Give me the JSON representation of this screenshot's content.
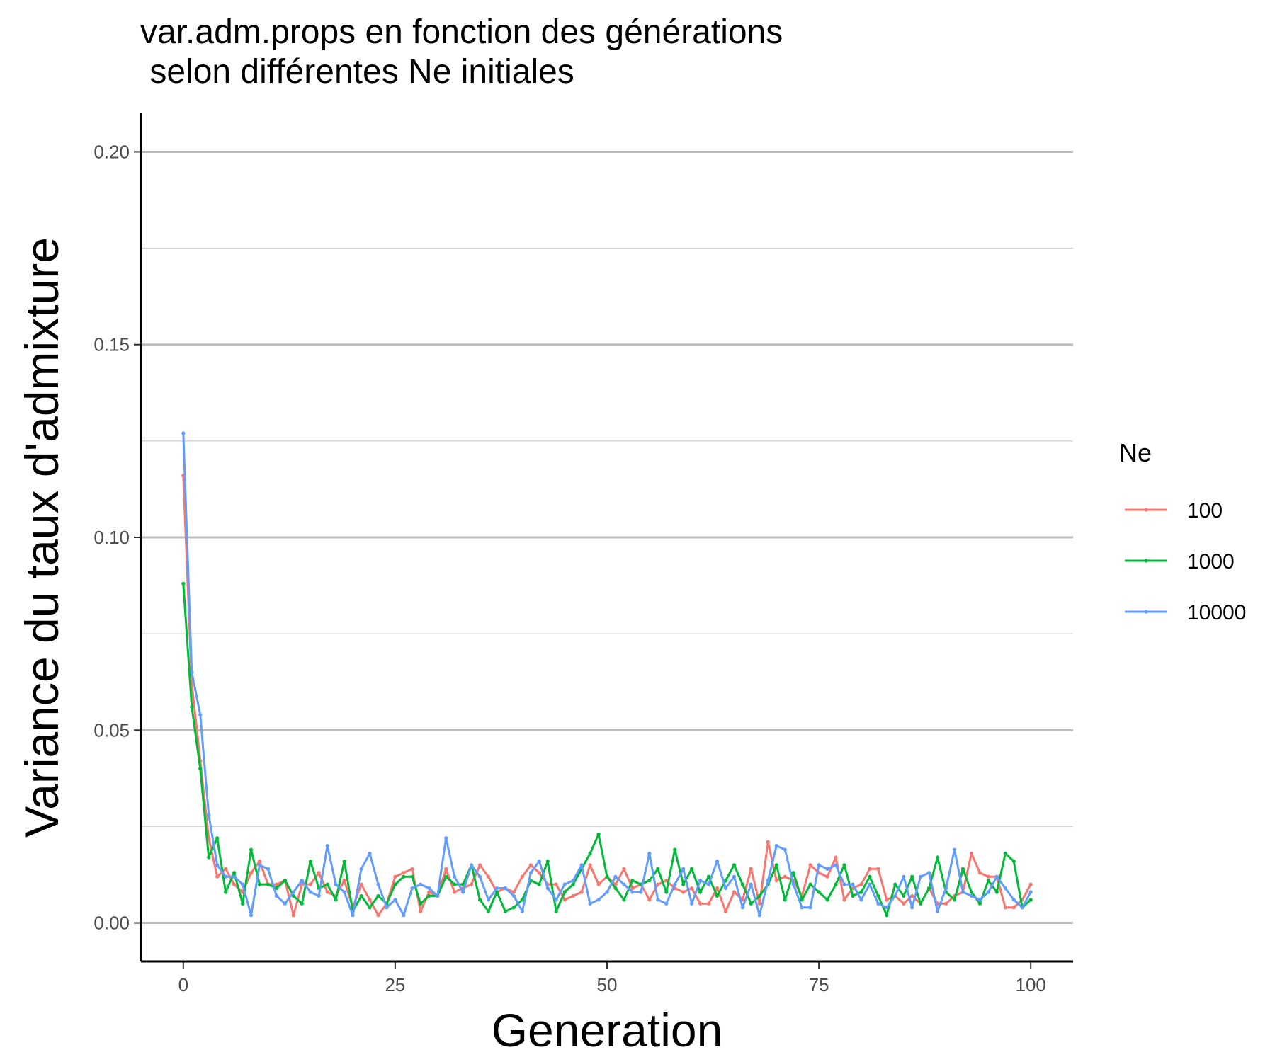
{
  "chart_data": {
    "type": "line",
    "title": "var.adm.props en fonction des générations\n selon différentes Ne initiales",
    "xlabel": "Generation",
    "ylabel": "Variance du taux d'admixture",
    "xlim": [
      -5,
      105
    ],
    "ylim": [
      -0.01,
      0.21
    ],
    "x_ticks": [
      0,
      25,
      50,
      75,
      100
    ],
    "x_tick_labels": [
      "0",
      "25",
      "50",
      "75",
      "100"
    ],
    "y_ticks": [
      0.0,
      0.05,
      0.1,
      0.15,
      0.2
    ],
    "y_tick_labels": [
      "0.00",
      "0.05",
      "0.10",
      "0.15",
      "0.20"
    ],
    "y_minor_ticks": [
      0.025,
      0.075,
      0.125,
      0.175
    ],
    "grid": "horizontal",
    "legend": {
      "title": "Ne",
      "position": "right"
    },
    "x": [
      0,
      1,
      2,
      3,
      4,
      5,
      6,
      7,
      8,
      9,
      10,
      11,
      12,
      13,
      14,
      15,
      16,
      17,
      18,
      19,
      20,
      21,
      22,
      23,
      24,
      25,
      26,
      27,
      28,
      29,
      30,
      31,
      32,
      33,
      34,
      35,
      36,
      37,
      38,
      39,
      40,
      41,
      42,
      43,
      44,
      45,
      46,
      47,
      48,
      49,
      50,
      51,
      52,
      53,
      54,
      55,
      56,
      57,
      58,
      59,
      60,
      61,
      62,
      63,
      64,
      65,
      66,
      67,
      68,
      69,
      70,
      71,
      72,
      73,
      74,
      75,
      76,
      77,
      78,
      79,
      80,
      81,
      82,
      83,
      84,
      85,
      86,
      87,
      88,
      89,
      90,
      91,
      92,
      93,
      94,
      95,
      96,
      97,
      98,
      99,
      100
    ],
    "series": [
      {
        "name": "100",
        "color": "#F8766D",
        "values": [
          0.116,
          0.062,
          0.042,
          0.022,
          0.012,
          0.014,
          0.01,
          0.008,
          0.013,
          0.016,
          0.01,
          0.01,
          0.011,
          0.002,
          0.01,
          0.01,
          0.013,
          0.008,
          0.007,
          0.011,
          0.004,
          0.01,
          0.006,
          0.002,
          0.005,
          0.012,
          0.013,
          0.014,
          0.003,
          0.008,
          0.007,
          0.014,
          0.008,
          0.009,
          0.01,
          0.015,
          0.012,
          0.008,
          0.009,
          0.008,
          0.012,
          0.015,
          0.013,
          0.01,
          0.01,
          0.006,
          0.007,
          0.008,
          0.015,
          0.01,
          0.012,
          0.01,
          0.014,
          0.009,
          0.01,
          0.006,
          0.01,
          0.011,
          0.009,
          0.008,
          0.009,
          0.005,
          0.005,
          0.009,
          0.003,
          0.008,
          0.006,
          0.014,
          0.005,
          0.021,
          0.011,
          0.012,
          0.011,
          0.007,
          0.015,
          0.013,
          0.012,
          0.017,
          0.006,
          0.009,
          0.01,
          0.014,
          0.014,
          0.006,
          0.007,
          0.005,
          0.007,
          0.005,
          0.009,
          0.005,
          0.005,
          0.007,
          0.008,
          0.018,
          0.013,
          0.012,
          0.012,
          0.004,
          0.004,
          0.006,
          0.01
        ]
      },
      {
        "name": "1000",
        "color": "#00BA38",
        "values": [
          0.088,
          0.056,
          0.04,
          0.017,
          0.022,
          0.008,
          0.013,
          0.005,
          0.019,
          0.01,
          0.01,
          0.009,
          0.011,
          0.007,
          0.005,
          0.016,
          0.009,
          0.01,
          0.006,
          0.016,
          0.003,
          0.007,
          0.004,
          0.007,
          0.005,
          0.01,
          0.012,
          0.012,
          0.005,
          0.007,
          0.007,
          0.012,
          0.01,
          0.01,
          0.015,
          0.006,
          0.003,
          0.008,
          0.003,
          0.004,
          0.006,
          0.011,
          0.01,
          0.016,
          0.003,
          0.008,
          0.01,
          0.014,
          0.018,
          0.023,
          0.012,
          0.009,
          0.006,
          0.011,
          0.01,
          0.011,
          0.014,
          0.008,
          0.019,
          0.01,
          0.014,
          0.008,
          0.012,
          0.007,
          0.011,
          0.015,
          0.01,
          0.005,
          0.007,
          0.01,
          0.015,
          0.006,
          0.013,
          0.006,
          0.01,
          0.008,
          0.006,
          0.01,
          0.015,
          0.007,
          0.008,
          0.012,
          0.007,
          0.002,
          0.01,
          0.007,
          0.012,
          0.005,
          0.009,
          0.017,
          0.008,
          0.006,
          0.014,
          0.008,
          0.005,
          0.011,
          0.008,
          0.018,
          0.016,
          0.004,
          0.006
        ]
      },
      {
        "name": "10000",
        "color": "#619CFF",
        "values": [
          0.127,
          0.065,
          0.054,
          0.028,
          0.015,
          0.012,
          0.012,
          0.01,
          0.002,
          0.015,
          0.014,
          0.007,
          0.005,
          0.008,
          0.011,
          0.008,
          0.007,
          0.02,
          0.01,
          0.008,
          0.002,
          0.014,
          0.018,
          0.01,
          0.004,
          0.006,
          0.002,
          0.009,
          0.01,
          0.009,
          0.007,
          0.022,
          0.012,
          0.008,
          0.015,
          0.012,
          0.006,
          0.009,
          0.009,
          0.007,
          0.003,
          0.013,
          0.016,
          0.009,
          0.006,
          0.01,
          0.011,
          0.015,
          0.005,
          0.006,
          0.008,
          0.012,
          0.01,
          0.008,
          0.008,
          0.018,
          0.006,
          0.005,
          0.01,
          0.014,
          0.005,
          0.011,
          0.01,
          0.016,
          0.009,
          0.012,
          0.004,
          0.01,
          0.002,
          0.011,
          0.02,
          0.019,
          0.01,
          0.004,
          0.004,
          0.015,
          0.014,
          0.015,
          0.01,
          0.01,
          0.006,
          0.01,
          0.005,
          0.004,
          0.007,
          0.012,
          0.004,
          0.012,
          0.013,
          0.003,
          0.009,
          0.019,
          0.008,
          0.007,
          0.006,
          0.008,
          0.012,
          0.009,
          0.006,
          0.004,
          0.008
        ]
      }
    ]
  }
}
